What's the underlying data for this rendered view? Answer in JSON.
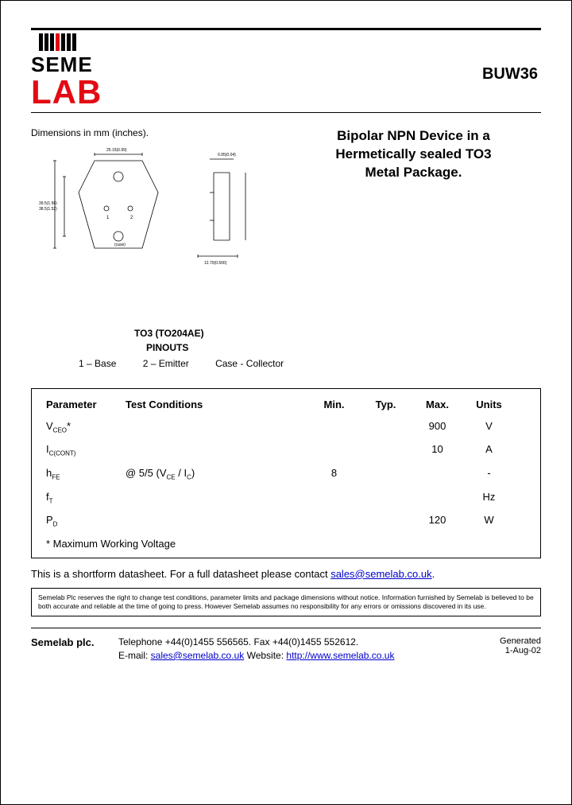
{
  "header": {
    "logo_line1": "SEME",
    "logo_line2": "LAB",
    "part_number": "BUW36"
  },
  "mid": {
    "dimensions_label": "Dimensions in mm (inches).",
    "product_title_line1": "Bipolar NPN Device in a",
    "product_title_line2": "Hermetically sealed TO3",
    "product_title_line3": "Metal Package."
  },
  "pinout": {
    "title": "TO3 (TO204AE)",
    "subtitle": "PINOUTS",
    "pin1": "1 – Base",
    "pin2": "2 – Emitter",
    "pin3": "Case - Collector"
  },
  "table": {
    "headers": {
      "parameter": "Parameter",
      "test": "Test Conditions",
      "min": "Min.",
      "typ": "Typ.",
      "max": "Max.",
      "units": "Units"
    },
    "rows": [
      {
        "param_html": "V<sub>CEO</sub>*",
        "test": "",
        "min": "",
        "typ": "",
        "max": "900",
        "units": "V"
      },
      {
        "param_html": "I<sub>C(CONT)</sub>",
        "test": "",
        "min": "",
        "typ": "",
        "max": "10",
        "units": "A"
      },
      {
        "param_html": "h<sub>FE</sub>",
        "test": "@ 5/5 (V<sub>CE</sub> / I<sub>C</sub>)",
        "min": "8",
        "typ": "",
        "max": "",
        "units": "-"
      },
      {
        "param_html": "f<sub>T</sub>",
        "test": "",
        "min": "",
        "typ": "",
        "max": "",
        "units": "Hz"
      },
      {
        "param_html": "P<sub>D</sub>",
        "test": "",
        "min": "",
        "typ": "",
        "max": "120",
        "units": "W"
      }
    ],
    "note": "* Maximum Working Voltage"
  },
  "shortform": {
    "text_prefix": "This is a shortform datasheet. For a full datasheet please contact ",
    "link_text": "sales@semelab.co.uk",
    "suffix": "."
  },
  "disclaimer": "Semelab Plc reserves the right to change test conditions, parameter limits and package dimensions without notice. Information furnished by Semelab is believed to be both accurate and reliable at the time of going to press. However Semelab assumes no responsibility for any errors or omissions discovered in its use.",
  "footer": {
    "company": "Semelab plc.",
    "phone_line": "Telephone +44(0)1455 556565. Fax +44(0)1455 552612.",
    "email_label": "E-mail: ",
    "email": "sales@semelab.co.uk",
    "website_label": "   Website: ",
    "website": "http://www.semelab.co.uk",
    "generated_label": "Generated",
    "generated_date": "1-Aug-02"
  },
  "colors": {
    "red": "#e30b13",
    "link": "#0000cc",
    "border": "#000000",
    "background": "#ffffff"
  }
}
